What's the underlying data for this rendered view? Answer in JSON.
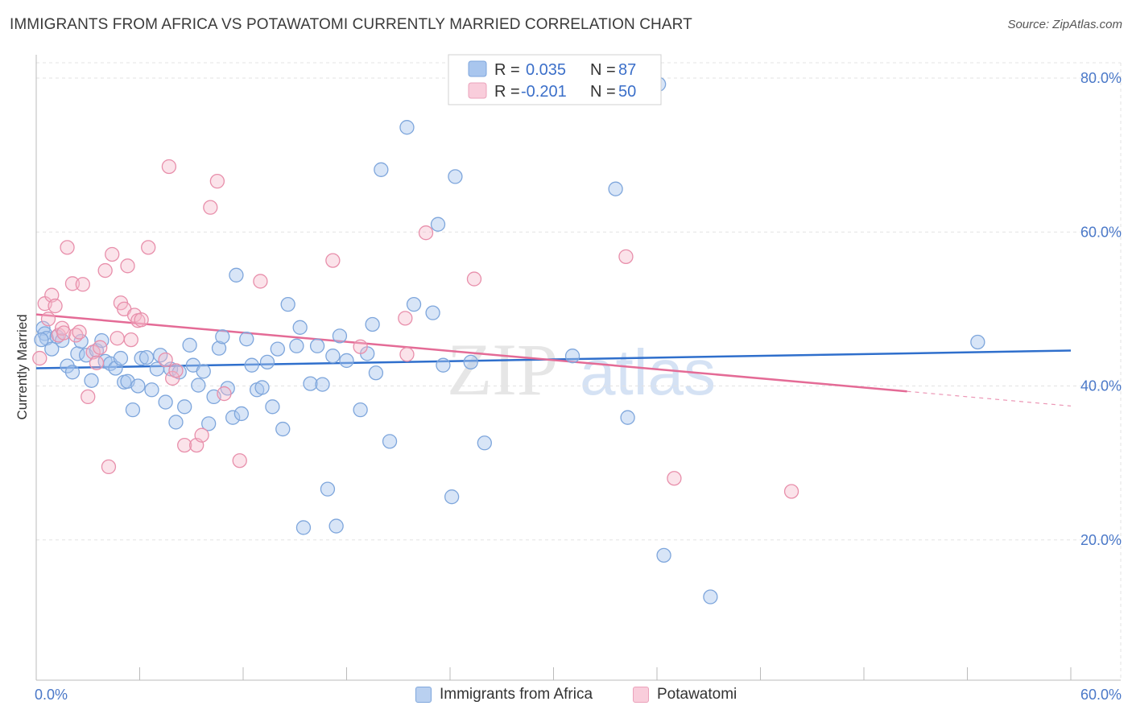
{
  "title": "IMMIGRANTS FROM AFRICA VS POTAWATOMI CURRENTLY MARRIED CORRELATION CHART",
  "source": "Source: ZipAtlas.com",
  "watermark": {
    "zip": "ZIP",
    "atlas": "atlas"
  },
  "colors": {
    "blue_fill": "#a9c6ee",
    "blue_stroke": "#7ea6dc",
    "blue_line": "#2f6fcc",
    "pink_fill": "#f4b8cb",
    "pink_stroke": "#e88fab",
    "pink_line": "#e46b96",
    "tick_text": "#4a78c8",
    "grid": "#e3e3e3"
  },
  "legend": {
    "rows": [
      {
        "r_label": "R =",
        "r_value": "0.035",
        "n_label": "N =",
        "n_value": "87"
      },
      {
        "r_label": "R =",
        "r_value": "-0.201",
        "n_label": "N =",
        "n_value": "50"
      }
    ]
  },
  "bottom_legend": {
    "africa": "Immigrants from Africa",
    "potawatomi": "Potawatomi"
  },
  "chart_data": {
    "type": "scatter",
    "title": "IMMIGRANTS FROM AFRICA VS POTAWATOMI CURRENTLY MARRIED CORRELATION CHART",
    "xlabel": "",
    "ylabel": "Currently Married",
    "xlim": [
      0,
      60
    ],
    "ylim": [
      0,
      83
    ],
    "x_tick_labels": [
      "0.0%",
      "60.0%"
    ],
    "y_ticks": [
      20,
      40,
      60,
      80
    ],
    "y_tick_labels": [
      "20.0%",
      "40.0%",
      "60.0%",
      "80.0%"
    ],
    "grid": true,
    "legend_position": "top-center",
    "series": [
      {
        "name": "Immigrants from Africa",
        "r": 0.035,
        "n": 87,
        "trend": {
          "x": [
            0,
            60
          ],
          "y": [
            42.3,
            44.6
          ]
        },
        "points": [
          [
            0.4,
            47.5
          ],
          [
            0.5,
            46.8
          ],
          [
            0.6,
            46.2
          ],
          [
            0.9,
            44.8
          ],
          [
            1.2,
            46.4
          ],
          [
            1.5,
            45.9
          ],
          [
            1.8,
            42.6
          ],
          [
            2.1,
            41.8
          ],
          [
            2.4,
            44.2
          ],
          [
            2.6,
            45.8
          ],
          [
            2.9,
            44.0
          ],
          [
            3.2,
            40.7
          ],
          [
            3.5,
            44.6
          ],
          [
            3.8,
            45.9
          ],
          [
            4.0,
            43.2
          ],
          [
            4.3,
            42.9
          ],
          [
            4.6,
            42.3
          ],
          [
            4.9,
            43.6
          ],
          [
            5.1,
            40.5
          ],
          [
            5.3,
            40.6
          ],
          [
            5.6,
            36.9
          ],
          [
            5.9,
            40.0
          ],
          [
            6.1,
            43.6
          ],
          [
            6.4,
            43.7
          ],
          [
            6.7,
            39.5
          ],
          [
            7.0,
            42.2
          ],
          [
            7.2,
            44.0
          ],
          [
            7.5,
            37.9
          ],
          [
            7.8,
            42.2
          ],
          [
            8.1,
            35.3
          ],
          [
            8.3,
            41.8
          ],
          [
            8.6,
            37.3
          ],
          [
            8.9,
            45.3
          ],
          [
            9.1,
            42.7
          ],
          [
            9.4,
            40.1
          ],
          [
            9.7,
            41.9
          ],
          [
            10.0,
            35.1
          ],
          [
            10.3,
            38.6
          ],
          [
            10.6,
            44.9
          ],
          [
            10.8,
            46.4
          ],
          [
            11.1,
            39.7
          ],
          [
            11.4,
            35.9
          ],
          [
            11.6,
            54.4
          ],
          [
            11.9,
            36.4
          ],
          [
            12.2,
            46.1
          ],
          [
            12.5,
            42.7
          ],
          [
            12.8,
            39.5
          ],
          [
            13.1,
            39.8
          ],
          [
            13.4,
            43.1
          ],
          [
            13.7,
            37.3
          ],
          [
            14.0,
            44.8
          ],
          [
            14.3,
            34.4
          ],
          [
            14.6,
            50.6
          ],
          [
            15.1,
            45.2
          ],
          [
            15.3,
            47.6
          ],
          [
            15.5,
            21.6
          ],
          [
            15.9,
            40.3
          ],
          [
            16.3,
            45.2
          ],
          [
            16.6,
            40.2
          ],
          [
            16.9,
            26.6
          ],
          [
            17.2,
            43.9
          ],
          [
            17.4,
            21.8
          ],
          [
            17.6,
            46.5
          ],
          [
            18.0,
            43.3
          ],
          [
            18.8,
            36.9
          ],
          [
            19.2,
            44.2
          ],
          [
            19.5,
            48.0
          ],
          [
            19.7,
            41.7
          ],
          [
            20.0,
            68.1
          ],
          [
            20.5,
            32.8
          ],
          [
            21.5,
            73.6
          ],
          [
            21.9,
            50.6
          ],
          [
            23.0,
            49.5
          ],
          [
            23.3,
            61.0
          ],
          [
            23.6,
            42.7
          ],
          [
            24.1,
            25.6
          ],
          [
            24.3,
            67.2
          ],
          [
            25.2,
            43.1
          ],
          [
            26.0,
            32.6
          ],
          [
            31.1,
            43.9
          ],
          [
            33.6,
            65.6
          ],
          [
            34.3,
            35.9
          ],
          [
            36.1,
            79.2
          ],
          [
            36.4,
            18.0
          ],
          [
            39.1,
            12.6
          ],
          [
            54.6,
            45.7
          ],
          [
            0.3,
            46.0
          ]
        ]
      },
      {
        "name": "Potawatomi",
        "r": -0.201,
        "n": 50,
        "trend": {
          "x": [
            0,
            50.5
          ],
          "y": [
            49.3,
            39.3
          ]
        },
        "trend_dashed": {
          "x": [
            50.5,
            60
          ],
          "y": [
            39.3,
            37.4
          ]
        },
        "points": [
          [
            0.2,
            43.6
          ],
          [
            0.5,
            50.7
          ],
          [
            0.7,
            48.7
          ],
          [
            0.9,
            51.8
          ],
          [
            1.1,
            50.4
          ],
          [
            1.3,
            46.6
          ],
          [
            1.5,
            47.5
          ],
          [
            1.6,
            46.9
          ],
          [
            1.8,
            58.0
          ],
          [
            2.1,
            53.3
          ],
          [
            2.3,
            46.6
          ],
          [
            2.5,
            47.0
          ],
          [
            2.7,
            53.2
          ],
          [
            3.0,
            38.6
          ],
          [
            3.3,
            44.4
          ],
          [
            3.5,
            43.0
          ],
          [
            3.7,
            45.0
          ],
          [
            4.0,
            55.0
          ],
          [
            4.2,
            29.5
          ],
          [
            4.4,
            57.1
          ],
          [
            4.7,
            46.2
          ],
          [
            4.9,
            50.8
          ],
          [
            5.1,
            50.0
          ],
          [
            5.3,
            55.6
          ],
          [
            5.5,
            46.0
          ],
          [
            5.7,
            49.2
          ],
          [
            5.9,
            48.5
          ],
          [
            6.1,
            48.6
          ],
          [
            6.5,
            58.0
          ],
          [
            7.5,
            43.4
          ],
          [
            7.7,
            68.5
          ],
          [
            7.9,
            41.0
          ],
          [
            8.1,
            42.0
          ],
          [
            8.6,
            32.3
          ],
          [
            9.3,
            32.3
          ],
          [
            9.6,
            33.6
          ],
          [
            10.1,
            63.2
          ],
          [
            10.5,
            66.6
          ],
          [
            10.9,
            39.0
          ],
          [
            11.8,
            30.3
          ],
          [
            13.0,
            53.6
          ],
          [
            17.2,
            56.3
          ],
          [
            18.8,
            45.1
          ],
          [
            21.4,
            48.8
          ],
          [
            22.6,
            59.9
          ],
          [
            25.4,
            53.9
          ],
          [
            34.2,
            56.8
          ],
          [
            37.0,
            28.0
          ],
          [
            43.8,
            26.3
          ],
          [
            21.5,
            44.1
          ]
        ]
      }
    ]
  }
}
